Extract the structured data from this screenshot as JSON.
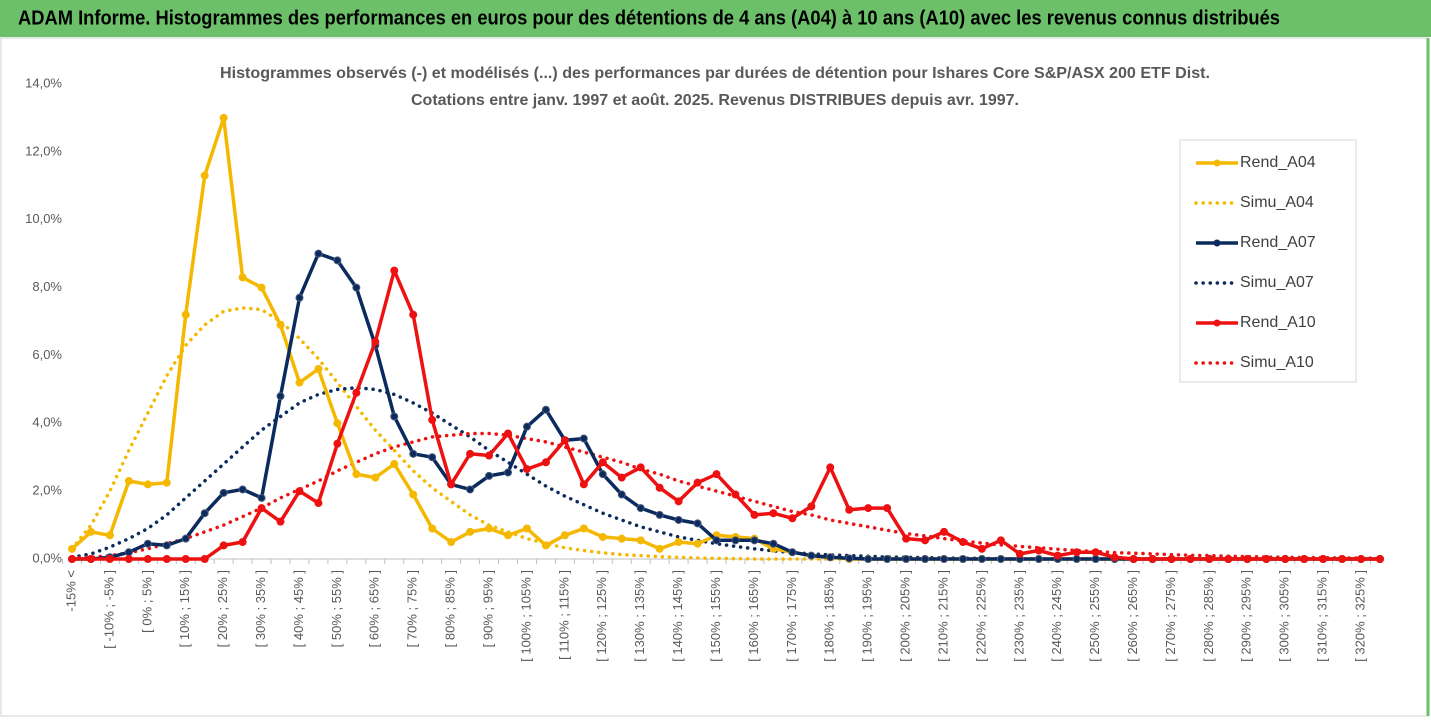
{
  "header": {
    "title": "ADAM Informe. Histogrammes des performances en euros pour des détentions de 4 ans (A04) à 10 ans (A10) avec les revenus connus distribués"
  },
  "chart_data": {
    "type": "line",
    "title": "Histogrammes observés (-) et modélisés (...) des performances par durées de détention pour Ishares Core S&P/ASX 200 ETF Dist.",
    "subtitle": "Cotations entre janv. 1997 et août. 2025. Revenus DISTRIBUES depuis avr. 1997.",
    "categories": [
      "-15% <",
      null,
      "[ -10% ; -5% ]",
      null,
      "[ 0% ; 5% ]",
      null,
      "[ 10% ; 15% ]",
      null,
      "[ 20% ; 25% ]",
      null,
      "[ 30% ; 35% ]",
      null,
      "[ 40% ; 45% ]",
      null,
      "[ 50% ; 55% ]",
      null,
      "[ 60% ; 65% ]",
      null,
      "[ 70% ; 75% ]",
      null,
      "[ 80% ; 85% ]",
      null,
      "[ 90% ; 95% ]",
      null,
      "[ 100% ; 105% ]",
      null,
      "[ 110% ; 115% ]",
      null,
      "[ 120% ; 125% ]",
      null,
      "[ 130% ; 135% ]",
      null,
      "[ 140% ; 145% ]",
      null,
      "[ 150% ; 155% ]",
      null,
      "[ 160% ; 165% ]",
      null,
      "[ 170% ; 175% ]",
      null,
      "[ 180% ; 185% ]",
      null,
      "[ 190% ; 195% ]",
      null,
      "[ 200% ; 205% ]",
      null,
      "[ 210% ; 215% ]",
      null,
      "[ 220% ; 225% ]",
      null,
      "[ 230% ; 235% ]",
      null,
      "[ 240% ; 245% ]",
      null,
      "[ 250% ; 255% ]",
      null,
      "[ 260% ; 265% ]",
      null,
      "[ 270% ; 275% ]",
      null,
      "[ 280% ; 285% ]",
      null,
      "[ 290% ; 295% ]",
      null,
      "[ 300% ; 305% ]",
      null,
      "[ 310% ; 315% ]",
      null,
      "[ 320% ; 325% ]",
      null
    ],
    "series": [
      {
        "name": "Rend_A04",
        "color": "#f5b800",
        "line_style": "solid",
        "markers": true,
        "values": [
          0.3,
          0.8,
          0.7,
          2.3,
          2.2,
          2.25,
          7.2,
          11.3,
          13.0,
          8.3,
          8.0,
          6.9,
          5.2,
          5.6,
          4.0,
          2.5,
          2.4,
          2.8,
          1.9,
          0.9,
          0.5,
          0.8,
          0.9,
          0.7,
          0.9,
          0.4,
          0.7,
          0.9,
          0.65,
          0.6,
          0.55,
          0.3,
          0.5,
          0.45,
          0.7,
          0.65,
          0.6,
          0.3,
          0.2,
          0.1,
          0.05,
          0,
          0,
          0,
          0,
          0,
          0,
          0,
          0,
          0,
          0,
          0,
          0,
          0,
          0,
          0,
          0,
          0,
          0,
          0,
          0,
          0,
          0,
          0,
          0,
          0,
          0,
          0,
          0,
          0
        ]
      },
      {
        "name": "Simu_A04",
        "color": "#f5b800",
        "line_style": "dotted",
        "markers": false,
        "values": [
          0.3,
          1.0,
          2.0,
          3.2,
          4.3,
          5.4,
          6.3,
          6.9,
          7.3,
          7.4,
          7.35,
          7.0,
          6.5,
          5.9,
          5.2,
          4.5,
          3.8,
          3.2,
          2.6,
          2.1,
          1.7,
          1.3,
          1.0,
          0.8,
          0.6,
          0.45,
          0.33,
          0.25,
          0.18,
          0.13,
          0.1,
          0.07,
          0.05,
          0.03,
          0.02,
          0.01,
          0,
          0,
          0,
          0,
          0,
          0,
          0,
          0,
          0,
          0,
          0,
          0,
          0,
          0,
          0,
          0,
          0,
          0,
          0,
          0,
          0,
          0,
          0,
          0,
          0,
          0,
          0,
          0,
          0,
          0,
          0,
          0,
          0,
          0
        ]
      },
      {
        "name": "Rend_A07",
        "color": "#0b2a5e",
        "line_style": "solid",
        "markers": true,
        "values": [
          0,
          0,
          0.05,
          0.2,
          0.45,
          0.4,
          0.6,
          1.35,
          1.95,
          2.05,
          1.8,
          4.8,
          7.7,
          9.0,
          8.8,
          8.0,
          6.3,
          4.2,
          3.1,
          3.0,
          2.2,
          2.05,
          2.45,
          2.55,
          3.9,
          4.4,
          3.5,
          3.55,
          2.5,
          1.9,
          1.5,
          1.3,
          1.15,
          1.05,
          0.55,
          0.55,
          0.55,
          0.45,
          0.2,
          0.1,
          0.05,
          0.02,
          0,
          0,
          0,
          0,
          0,
          0,
          0,
          0,
          0,
          0,
          0,
          0,
          0,
          0,
          0,
          0,
          0,
          0,
          0,
          0,
          0,
          0,
          0,
          0,
          0,
          0,
          0,
          0
        ]
      },
      {
        "name": "Simu_A07",
        "color": "#0b2a5e",
        "line_style": "dotted",
        "markers": false,
        "values": [
          0.05,
          0.15,
          0.35,
          0.6,
          0.9,
          1.3,
          1.8,
          2.3,
          2.8,
          3.3,
          3.8,
          4.2,
          4.6,
          4.85,
          5.0,
          5.05,
          5.0,
          4.85,
          4.6,
          4.3,
          3.95,
          3.6,
          3.2,
          2.85,
          2.5,
          2.15,
          1.85,
          1.6,
          1.35,
          1.15,
          0.95,
          0.8,
          0.65,
          0.55,
          0.45,
          0.37,
          0.3,
          0.24,
          0.19,
          0.15,
          0.12,
          0.1,
          0.08,
          0.06,
          0.05,
          0.04,
          0.03,
          0.02,
          0.02,
          0.01,
          0,
          0,
          0,
          0,
          0,
          0,
          0,
          0,
          0,
          0,
          0,
          0,
          0,
          0,
          0,
          0,
          0,
          0,
          0,
          0
        ]
      },
      {
        "name": "Rend_A10",
        "color": "#ee1111",
        "line_style": "solid",
        "markers": true,
        "values": [
          0,
          0,
          0,
          0,
          0,
          0,
          0,
          0,
          0.4,
          0.5,
          1.5,
          1.1,
          2.0,
          1.65,
          3.4,
          4.9,
          6.4,
          8.5,
          7.2,
          4.1,
          2.2,
          3.1,
          3.05,
          3.7,
          2.65,
          2.85,
          3.5,
          2.2,
          2.85,
          2.4,
          2.7,
          2.1,
          1.7,
          2.25,
          2.5,
          1.9,
          1.3,
          1.35,
          1.2,
          1.55,
          2.7,
          1.45,
          1.5,
          1.5,
          0.6,
          0.55,
          0.8,
          0.5,
          0.3,
          0.55,
          0.15,
          0.25,
          0.1,
          0.2,
          0.2,
          0.05,
          0,
          0,
          0,
          0,
          0,
          0,
          0,
          0,
          0,
          0,
          0,
          0,
          0,
          0
        ]
      },
      {
        "name": "Simu_A10",
        "color": "#ee1111",
        "line_style": "dotted",
        "markers": false,
        "values": [
          0.02,
          0.05,
          0.1,
          0.18,
          0.3,
          0.45,
          0.6,
          0.8,
          1.0,
          1.25,
          1.5,
          1.8,
          2.05,
          2.3,
          2.6,
          2.85,
          3.1,
          3.3,
          3.45,
          3.6,
          3.65,
          3.7,
          3.7,
          3.65,
          3.55,
          3.45,
          3.3,
          3.15,
          3.0,
          2.85,
          2.65,
          2.5,
          2.3,
          2.15,
          2.0,
          1.85,
          1.7,
          1.55,
          1.4,
          1.3,
          1.15,
          1.05,
          0.95,
          0.85,
          0.75,
          0.68,
          0.6,
          0.53,
          0.47,
          0.42,
          0.37,
          0.33,
          0.29,
          0.25,
          0.22,
          0.19,
          0.17,
          0.15,
          0.13,
          0.11,
          0.1,
          0.08,
          0.07,
          0.06,
          0.05,
          0.04,
          0.04,
          0.03,
          0.03,
          0.02
        ]
      }
    ],
    "ylim": [
      0,
      14
    ],
    "yticks": [
      {
        "value": 0,
        "label": "0,0%"
      },
      {
        "value": 2,
        "label": "2,0%"
      },
      {
        "value": 4,
        "label": "4,0%"
      },
      {
        "value": 6,
        "label": "6,0%"
      },
      {
        "value": 8,
        "label": "8,0%"
      },
      {
        "value": 10,
        "label": "10,0%"
      },
      {
        "value": 12,
        "label": "12,0%"
      },
      {
        "value": 14,
        "label": "14,0%"
      }
    ],
    "grid": false,
    "legend": "right"
  }
}
